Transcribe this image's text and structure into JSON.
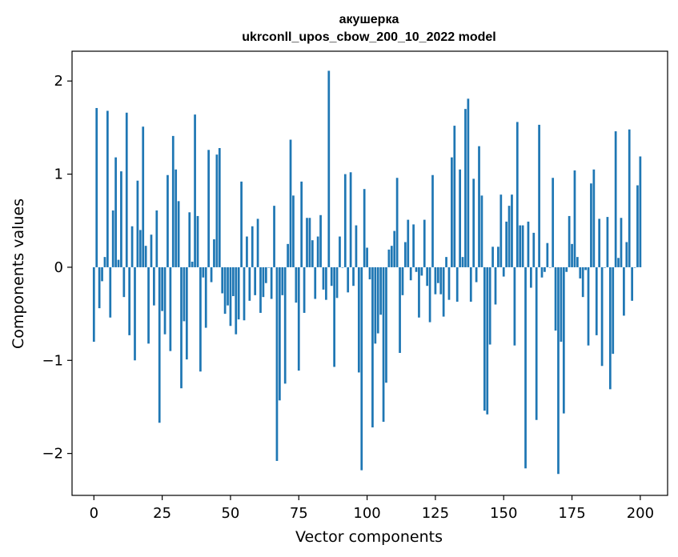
{
  "chart_data": {
    "type": "bar",
    "title": "акушерка",
    "subtitle": "ukrconll_upos_cbow_200_10_2022 model",
    "xlabel": "Vector components",
    "ylabel": "Components values",
    "xlim": [
      -8,
      210
    ],
    "ylim": [
      -2.45,
      2.32
    ],
    "xticks": [
      0,
      25,
      50,
      75,
      100,
      125,
      150,
      175,
      200
    ],
    "yticks": [
      -2,
      -1,
      0,
      1,
      2
    ],
    "ytick_labels": [
      "−2",
      "−1",
      "0",
      "1",
      "2"
    ],
    "grid": false,
    "legend": "none",
    "bar_color": "#1f77b4",
    "values": [
      -0.8,
      1.71,
      -0.44,
      -0.15,
      0.11,
      1.68,
      -0.54,
      0.61,
      1.18,
      0.08,
      1.03,
      -0.32,
      1.66,
      -0.73,
      0.44,
      -1.0,
      0.93,
      0.4,
      1.51,
      0.23,
      -0.82,
      0.35,
      -0.41,
      0.61,
      -1.67,
      -0.47,
      -0.72,
      0.99,
      -0.9,
      1.41,
      1.05,
      0.71,
      -1.3,
      -0.58,
      -0.99,
      0.59,
      0.06,
      1.64,
      0.55,
      -1.12,
      -0.11,
      -0.65,
      1.26,
      -0.16,
      0.3,
      1.21,
      1.28,
      -0.28,
      -0.5,
      -0.41,
      -0.63,
      -0.31,
      -0.72,
      -0.56,
      0.92,
      -0.57,
      0.33,
      -0.36,
      0.44,
      -0.3,
      0.52,
      -0.49,
      -0.32,
      -0.17,
      0.0,
      -0.34,
      0.66,
      -2.08,
      -1.43,
      -0.3,
      -1.25,
      0.25,
      1.37,
      0.77,
      -0.38,
      -1.11,
      0.92,
      -0.49,
      0.53,
      0.53,
      0.29,
      -0.34,
      0.33,
      0.56,
      -0.24,
      -0.35,
      2.11,
      -0.2,
      -1.07,
      -0.33,
      0.33,
      0.0,
      1.0,
      -0.27,
      1.02,
      -0.2,
      0.45,
      -1.13,
      -2.18,
      0.84,
      0.21,
      -0.13,
      -1.72,
      -0.82,
      -0.71,
      -0.51,
      -1.66,
      -1.24,
      0.19,
      0.23,
      0.39,
      0.96,
      -0.92,
      -0.3,
      0.27,
      0.51,
      -0.14,
      0.46,
      -0.05,
      -0.54,
      -0.09,
      0.51,
      -0.2,
      -0.59,
      0.99,
      -0.29,
      -0.17,
      -0.29,
      -0.53,
      0.11,
      -0.35,
      1.18,
      1.52,
      -0.37,
      1.05,
      0.11,
      1.7,
      1.81,
      -0.37,
      0.95,
      -0.16,
      1.3,
      0.77,
      -1.54,
      -1.58,
      -0.83,
      0.22,
      -0.4,
      0.22,
      0.78,
      -0.1,
      0.49,
      0.66,
      0.78,
      -0.84,
      1.56,
      0.45,
      0.45,
      -2.16,
      0.49,
      -0.22,
      0.37,
      -1.64,
      1.53,
      -0.11,
      -0.05,
      0.26,
      0.0,
      0.96,
      -0.68,
      -2.22,
      -0.8,
      -1.57,
      -0.05,
      0.55,
      0.25,
      1.04,
      0.11,
      -0.12,
      -0.32,
      -0.03,
      -0.84,
      0.9,
      1.05,
      -0.73,
      0.52,
      -1.06,
      0.0,
      0.54,
      -1.31,
      -0.93,
      1.46,
      0.1,
      0.53,
      -0.52,
      0.27,
      1.48,
      -0.36,
      0.0,
      0.88,
      1.19
    ]
  }
}
